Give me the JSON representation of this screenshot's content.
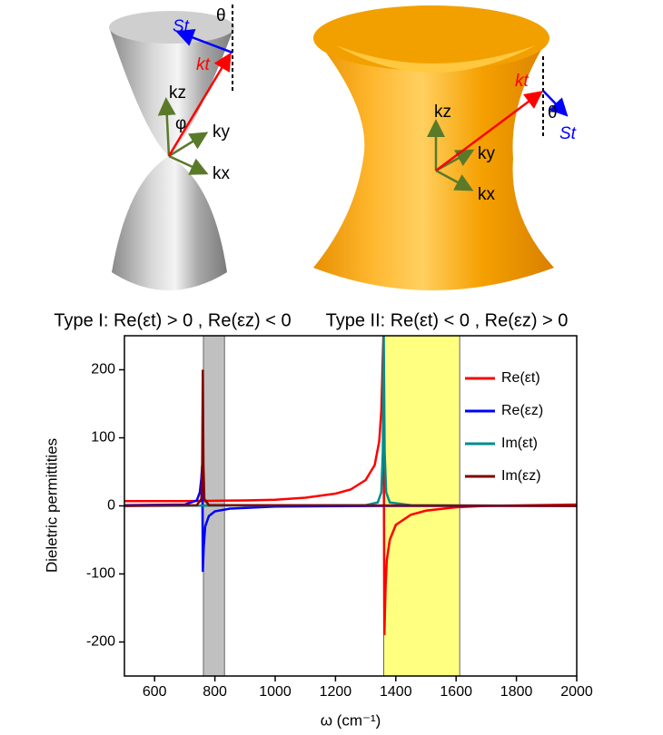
{
  "figure": {
    "left_labels": [
      "θ",
      "St",
      "kt",
      "kz",
      "φ",
      "ky",
      "kx"
    ],
    "right_labels": [
      "kt",
      "θ",
      "St",
      "kz",
      "ky",
      "kx"
    ]
  },
  "chart_data": {
    "type": "line",
    "captions": [
      "Type I: Re(εt) > 0 , Re(εz) < 0",
      "Type II: Re(εt) < 0 ,  Re(εz) > 0"
    ],
    "xlabel": "ω (cm⁻¹)",
    "ylabel": "Dieletric permittities",
    "xlim": [
      500,
      2000
    ],
    "xticks": [
      600,
      800,
      1000,
      1200,
      1400,
      1600,
      1800,
      2000
    ],
    "ylim": [
      -250,
      250
    ],
    "yticks": [
      -200,
      -100,
      0,
      100,
      200
    ],
    "legend": "upper right",
    "shaded_regions": [
      {
        "xlim": [
          762,
          832
        ],
        "color": "#c0c0c0"
      },
      {
        "xlim": [
          1360,
          1612
        ],
        "color": "#ffff80"
      }
    ],
    "series": [
      {
        "name": "Re(εt)",
        "color": "#ff0000",
        "x": [
          500,
          700,
          900,
          1000,
          1100,
          1200,
          1250,
          1300,
          1330,
          1345,
          1352,
          1357,
          1359,
          1362,
          1366,
          1370,
          1380,
          1400,
          1450,
          1500,
          1600,
          1700,
          2000
        ],
        "values": [
          7,
          7,
          8,
          9,
          12,
          18,
          24,
          38,
          60,
          95,
          140,
          220,
          250,
          -190,
          -120,
          -80,
          -50,
          -28,
          -13,
          -7,
          -2,
          0,
          2
        ]
      },
      {
        "name": "Re(εz)",
        "color": "#0000ff",
        "x": [
          500,
          700,
          740,
          750,
          755,
          758,
          760,
          763,
          768,
          780,
          800,
          850,
          1000,
          1360,
          2000
        ],
        "values": [
          1,
          2,
          8,
          20,
          40,
          60,
          -97,
          -60,
          -30,
          -15,
          -8,
          -4,
          -1,
          0,
          0
        ]
      },
      {
        "name": "Im(εt)",
        "color": "#008b8b",
        "x": [
          500,
          1300,
          1340,
          1352,
          1357,
          1360,
          1363,
          1368,
          1380,
          1450,
          2000
        ],
        "values": [
          0,
          1,
          5,
          20,
          80,
          250,
          80,
          20,
          5,
          1,
          0
        ]
      },
      {
        "name": "Im(εz)",
        "color": "#800000",
        "x": [
          500,
          740,
          755,
          758,
          760,
          762,
          765,
          780,
          2000
        ],
        "values": [
          0,
          1,
          10,
          60,
          200,
          60,
          10,
          1,
          0
        ]
      }
    ]
  }
}
